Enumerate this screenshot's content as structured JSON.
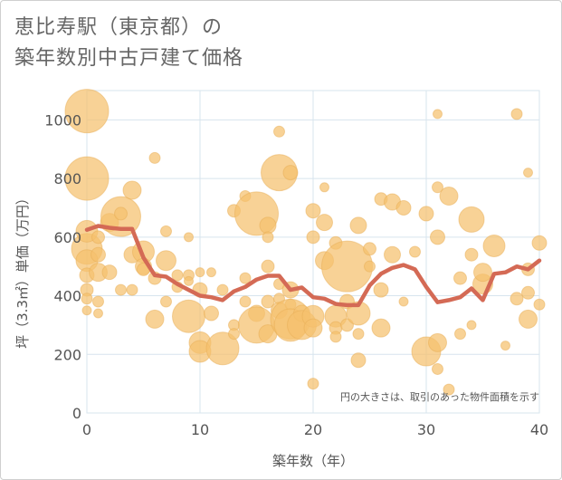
{
  "title_line1": "恵比寿駅（東京都）の",
  "title_line2": "築年数別中古戸建て価格",
  "colors": {
    "bubble_fill": "#f5c16e",
    "bubble_stroke": "#e7ad55",
    "line": "#d46a55",
    "grid": "#d7e4ee",
    "plot_bg": "#ffffff",
    "axis_text": "#555555"
  },
  "chart_data": {
    "type": "scatter",
    "title": "恵比寿駅（東京都）の築年数別中古戸建て価格",
    "xlabel": "築年数（年）",
    "ylabel": "坪（3.3㎡）単価（万円）",
    "xlim": [
      0,
      40
    ],
    "ylim": [
      0,
      1100
    ],
    "xticks": [
      0,
      10,
      20,
      30,
      40
    ],
    "yticks": [
      0,
      200,
      400,
      600,
      800,
      1000
    ],
    "grid": true,
    "annotation": "円の大きさは、取引のあった物件面積を示す",
    "bubbles": [
      {
        "x": 0,
        "y": 1030,
        "s": 24
      },
      {
        "x": 0,
        "y": 800,
        "s": 24
      },
      {
        "x": 0,
        "y": 560,
        "s": 17
      },
      {
        "x": 0,
        "y": 620,
        "s": 12
      },
      {
        "x": 0,
        "y": 520,
        "s": 12
      },
      {
        "x": 0,
        "y": 470,
        "s": 8
      },
      {
        "x": 0,
        "y": 420,
        "s": 7
      },
      {
        "x": 0,
        "y": 390,
        "s": 6
      },
      {
        "x": 0,
        "y": 350,
        "s": 5
      },
      {
        "x": 1,
        "y": 480,
        "s": 10
      },
      {
        "x": 1,
        "y": 540,
        "s": 8
      },
      {
        "x": 1,
        "y": 600,
        "s": 7
      },
      {
        "x": 1,
        "y": 380,
        "s": 6
      },
      {
        "x": 1,
        "y": 340,
        "s": 5
      },
      {
        "x": 2,
        "y": 480,
        "s": 8
      },
      {
        "x": 2,
        "y": 650,
        "s": 10
      },
      {
        "x": 3,
        "y": 670,
        "s": 22
      },
      {
        "x": 3,
        "y": 680,
        "s": 7
      },
      {
        "x": 3,
        "y": 420,
        "s": 6
      },
      {
        "x": 4,
        "y": 760,
        "s": 10
      },
      {
        "x": 4,
        "y": 540,
        "s": 9
      },
      {
        "x": 4,
        "y": 420,
        "s": 6
      },
      {
        "x": 5,
        "y": 550,
        "s": 12
      },
      {
        "x": 5,
        "y": 500,
        "s": 9
      },
      {
        "x": 5,
        "y": 490,
        "s": 7
      },
      {
        "x": 6,
        "y": 870,
        "s": 6
      },
      {
        "x": 6,
        "y": 320,
        "s": 10
      },
      {
        "x": 6,
        "y": 460,
        "s": 7
      },
      {
        "x": 7,
        "y": 520,
        "s": 11
      },
      {
        "x": 7,
        "y": 620,
        "s": 6
      },
      {
        "x": 7,
        "y": 380,
        "s": 6
      },
      {
        "x": 8,
        "y": 430,
        "s": 6
      },
      {
        "x": 8,
        "y": 470,
        "s": 6
      },
      {
        "x": 9,
        "y": 600,
        "s": 5
      },
      {
        "x": 9,
        "y": 470,
        "s": 6
      },
      {
        "x": 9,
        "y": 450,
        "s": 5
      },
      {
        "x": 9,
        "y": 330,
        "s": 18
      },
      {
        "x": 10,
        "y": 480,
        "s": 5
      },
      {
        "x": 10,
        "y": 420,
        "s": 8
      },
      {
        "x": 10,
        "y": 240,
        "s": 12
      },
      {
        "x": 10,
        "y": 210,
        "s": 12
      },
      {
        "x": 11,
        "y": 480,
        "s": 5
      },
      {
        "x": 11,
        "y": 340,
        "s": 8
      },
      {
        "x": 12,
        "y": 220,
        "s": 18
      },
      {
        "x": 12,
        "y": 420,
        "s": 6
      },
      {
        "x": 13,
        "y": 690,
        "s": 7
      },
      {
        "x": 13,
        "y": 300,
        "s": 6
      },
      {
        "x": 13,
        "y": 270,
        "s": 6
      },
      {
        "x": 14,
        "y": 740,
        "s": 6
      },
      {
        "x": 14,
        "y": 460,
        "s": 6
      },
      {
        "x": 14,
        "y": 380,
        "s": 6
      },
      {
        "x": 15,
        "y": 680,
        "s": 24
      },
      {
        "x": 15,
        "y": 340,
        "s": 9
      },
      {
        "x": 15,
        "y": 300,
        "s": 20
      },
      {
        "x": 16,
        "y": 640,
        "s": 9
      },
      {
        "x": 16,
        "y": 600,
        "s": 6
      },
      {
        "x": 16,
        "y": 500,
        "s": 7
      },
      {
        "x": 16,
        "y": 380,
        "s": 7
      },
      {
        "x": 16,
        "y": 270,
        "s": 10
      },
      {
        "x": 17,
        "y": 960,
        "s": 6
      },
      {
        "x": 17,
        "y": 820,
        "s": 20
      },
      {
        "x": 17,
        "y": 440,
        "s": 6
      },
      {
        "x": 17,
        "y": 390,
        "s": 6
      },
      {
        "x": 17,
        "y": 350,
        "s": 9
      },
      {
        "x": 18,
        "y": 820,
        "s": 8
      },
      {
        "x": 18,
        "y": 420,
        "s": 9
      },
      {
        "x": 18,
        "y": 370,
        "s": 6
      },
      {
        "x": 18,
        "y": 320,
        "s": 22
      },
      {
        "x": 18,
        "y": 300,
        "s": 18
      },
      {
        "x": 19,
        "y": 340,
        "s": 9
      },
      {
        "x": 19,
        "y": 300,
        "s": 16
      },
      {
        "x": 20,
        "y": 690,
        "s": 8
      },
      {
        "x": 20,
        "y": 600,
        "s": 7
      },
      {
        "x": 20,
        "y": 330,
        "s": 12
      },
      {
        "x": 20,
        "y": 290,
        "s": 10
      },
      {
        "x": 20,
        "y": 100,
        "s": 6
      },
      {
        "x": 21,
        "y": 770,
        "s": 5
      },
      {
        "x": 21,
        "y": 520,
        "s": 10
      },
      {
        "x": 21,
        "y": 650,
        "s": 9
      },
      {
        "x": 22,
        "y": 580,
        "s": 7
      },
      {
        "x": 22,
        "y": 330,
        "s": 12
      },
      {
        "x": 22,
        "y": 290,
        "s": 7
      },
      {
        "x": 22,
        "y": 260,
        "s": 6
      },
      {
        "x": 23,
        "y": 500,
        "s": 28
      },
      {
        "x": 23,
        "y": 380,
        "s": 8
      },
      {
        "x": 23,
        "y": 300,
        "s": 7
      },
      {
        "x": 24,
        "y": 640,
        "s": 9
      },
      {
        "x": 24,
        "y": 340,
        "s": 13
      },
      {
        "x": 24,
        "y": 180,
        "s": 8
      },
      {
        "x": 24,
        "y": 270,
        "s": 6
      },
      {
        "x": 25,
        "y": 560,
        "s": 7
      },
      {
        "x": 25,
        "y": 500,
        "s": 6
      },
      {
        "x": 26,
        "y": 730,
        "s": 7
      },
      {
        "x": 26,
        "y": 420,
        "s": 8
      },
      {
        "x": 26,
        "y": 290,
        "s": 10
      },
      {
        "x": 27,
        "y": 720,
        "s": 9
      },
      {
        "x": 27,
        "y": 540,
        "s": 9
      },
      {
        "x": 28,
        "y": 700,
        "s": 8
      },
      {
        "x": 28,
        "y": 380,
        "s": 5
      },
      {
        "x": 29,
        "y": 550,
        "s": 6
      },
      {
        "x": 30,
        "y": 680,
        "s": 8
      },
      {
        "x": 30,
        "y": 210,
        "s": 16
      },
      {
        "x": 31,
        "y": 1020,
        "s": 5
      },
      {
        "x": 31,
        "y": 770,
        "s": 6
      },
      {
        "x": 31,
        "y": 600,
        "s": 8
      },
      {
        "x": 31,
        "y": 240,
        "s": 10
      },
      {
        "x": 31,
        "y": 150,
        "s": 6
      },
      {
        "x": 32,
        "y": 740,
        "s": 10
      },
      {
        "x": 32,
        "y": 80,
        "s": 6
      },
      {
        "x": 33,
        "y": 460,
        "s": 7
      },
      {
        "x": 33,
        "y": 270,
        "s": 6
      },
      {
        "x": 34,
        "y": 660,
        "s": 14
      },
      {
        "x": 34,
        "y": 540,
        "s": 7
      },
      {
        "x": 34,
        "y": 300,
        "s": 5
      },
      {
        "x": 35,
        "y": 440,
        "s": 11
      },
      {
        "x": 35,
        "y": 480,
        "s": 10
      },
      {
        "x": 36,
        "y": 570,
        "s": 12
      },
      {
        "x": 37,
        "y": 230,
        "s": 5
      },
      {
        "x": 38,
        "y": 1020,
        "s": 6
      },
      {
        "x": 38,
        "y": 390,
        "s": 7
      },
      {
        "x": 39,
        "y": 820,
        "s": 5
      },
      {
        "x": 39,
        "y": 410,
        "s": 7
      },
      {
        "x": 39,
        "y": 320,
        "s": 10
      },
      {
        "x": 39,
        "y": 490,
        "s": 7
      },
      {
        "x": 40,
        "y": 580,
        "s": 8
      },
      {
        "x": 40,
        "y": 370,
        "s": 6
      }
    ],
    "trend": {
      "x": [
        0,
        1,
        2,
        3,
        4,
        5,
        6,
        7,
        8,
        9,
        10,
        11,
        12,
        13,
        14,
        15,
        16,
        17,
        18,
        19,
        20,
        21,
        22,
        23,
        24,
        25,
        26,
        27,
        28,
        29,
        30,
        31,
        32,
        33,
        34,
        35,
        36,
        37,
        38,
        39,
        40
      ],
      "y": [
        625,
        638,
        632,
        628,
        628,
        530,
        470,
        465,
        440,
        420,
        400,
        395,
        385,
        415,
        430,
        455,
        468,
        468,
        420,
        428,
        395,
        390,
        372,
        368,
        368,
        435,
        475,
        495,
        505,
        490,
        430,
        378,
        385,
        395,
        425,
        385,
        475,
        480,
        500,
        490,
        520
      ]
    }
  }
}
